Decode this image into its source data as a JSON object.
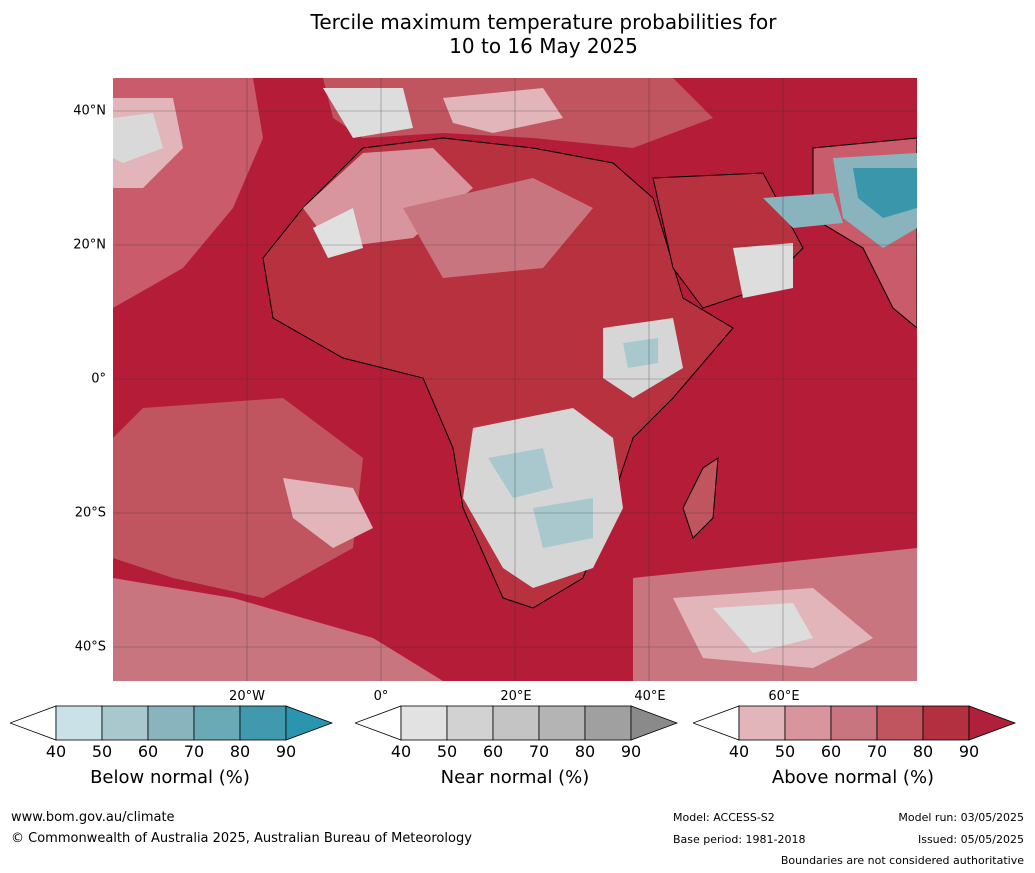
{
  "title_line1": "Tercile maximum temperature probabilities for",
  "title_line2": "10 to 16 May 2025",
  "lat_labels": [
    "40°N",
    "20°N",
    "0°",
    "20°S",
    "40°S"
  ],
  "lon_labels": [
    "20°W",
    "0°",
    "20°E",
    "40°E",
    "60°E"
  ],
  "colorbars": [
    {
      "name": "Below normal (%)",
      "ticks": [
        "40",
        "50",
        "60",
        "70",
        "80",
        "90"
      ],
      "colors": [
        "#ffffff",
        "#c9e1e7",
        "#a8c8ce",
        "#89b4be",
        "#6aaab5",
        "#4199ae",
        "#2a95ae"
      ]
    },
    {
      "name": "Near normal (%)",
      "ticks": [
        "40",
        "50",
        "60",
        "70",
        "80",
        "90"
      ],
      "colors": [
        "#ffffff",
        "#e2e2e2",
        "#d2d2d2",
        "#c4c4c4",
        "#b4b4b4",
        "#a0a0a0",
        "#8a8a8a"
      ]
    },
    {
      "name": "Above normal (%)",
      "ticks": [
        "40",
        "50",
        "60",
        "70",
        "80",
        "90"
      ],
      "colors": [
        "#ffffff",
        "#e2b5ba",
        "#d8959d",
        "#c97580",
        "#c0555f",
        "#b2303f",
        "#b1203a"
      ]
    }
  ],
  "footer": {
    "website": "www.bom.gov.au/climate",
    "copyright": "© Commonwealth of Australia 2025, Australian Bureau of Meteorology",
    "model": "Model: ACCESS-S2",
    "base_period": "Base period: 1981-2018",
    "model_run": "Model run: 03/05/2025",
    "issued": "Issued: 05/05/2025",
    "disclaimer": "Boundaries are not considered authoritative"
  },
  "colors": {
    "ocean_above": "#b41c38",
    "land_mid": "#c95b6a",
    "near_grey": "#d8d8d8",
    "below_teal": "#3a97ab"
  }
}
